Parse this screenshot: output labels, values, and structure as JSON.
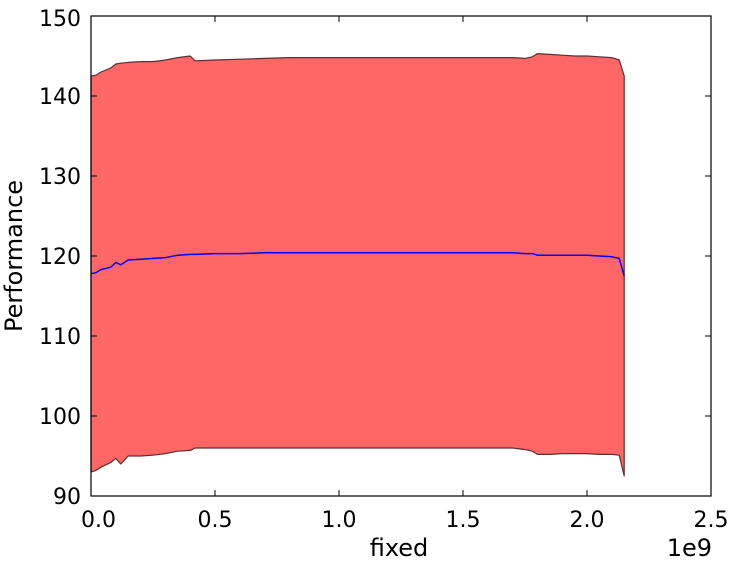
{
  "chart_data": {
    "type": "area",
    "title": "",
    "xlabel": "fixed",
    "ylabel": "Performance",
    "x_offset_label": "1e9",
    "xlim": [
      0,
      2.5
    ],
    "ylim": [
      90,
      150
    ],
    "x_ticks": [
      0.0,
      0.5,
      1.0,
      1.5,
      2.0,
      2.5
    ],
    "x_tick_labels": [
      "0.0",
      "0.5",
      "1.0",
      "1.5",
      "2.0",
      "2.5"
    ],
    "y_ticks": [
      90,
      100,
      110,
      120,
      130,
      140,
      150
    ],
    "y_tick_labels": [
      "90",
      "100",
      "110",
      "120",
      "130",
      "140",
      "150"
    ],
    "grid": false,
    "legend": "none",
    "colors": {
      "band_fill": "#ff6666",
      "band_edge": "#5a3030",
      "mean_line": "#0000ff"
    },
    "series": [
      {
        "x": [
          0.0,
          0.02,
          0.04,
          0.08,
          0.1,
          0.12,
          0.15,
          0.2,
          0.25,
          0.3,
          0.35,
          0.4,
          0.42,
          0.5,
          0.6,
          0.7,
          0.8,
          0.9,
          1.0,
          1.1,
          1.2,
          1.3,
          1.4,
          1.5,
          1.6,
          1.7,
          1.75,
          1.78,
          1.8,
          1.85,
          1.9,
          1.95,
          2.0,
          2.05,
          2.1,
          2.13,
          2.15
        ],
        "mean": [
          117.8,
          117.9,
          118.3,
          118.6,
          119.2,
          118.9,
          119.5,
          119.6,
          119.7,
          119.8,
          120.1,
          120.2,
          120.2,
          120.3,
          120.3,
          120.4,
          120.4,
          120.4,
          120.4,
          120.4,
          120.4,
          120.4,
          120.4,
          120.4,
          120.4,
          120.4,
          120.3,
          120.3,
          120.1,
          120.1,
          120.1,
          120.1,
          120.1,
          120.0,
          119.9,
          119.7,
          117.5
        ],
        "upper": [
          142.5,
          142.6,
          143.0,
          143.5,
          144.0,
          144.1,
          144.2,
          144.3,
          144.3,
          144.5,
          144.8,
          145.0,
          144.4,
          144.5,
          144.6,
          144.7,
          144.8,
          144.8,
          144.8,
          144.8,
          144.8,
          144.8,
          144.8,
          144.8,
          144.8,
          144.8,
          144.7,
          144.9,
          145.3,
          145.2,
          145.1,
          145.0,
          145.0,
          144.9,
          144.8,
          144.5,
          142.5
        ],
        "lower": [
          93.0,
          93.2,
          93.6,
          94.2,
          94.7,
          94.0,
          95.0,
          95.0,
          95.1,
          95.3,
          95.6,
          95.7,
          96.0,
          96.0,
          96.0,
          96.0,
          96.0,
          96.0,
          96.0,
          96.0,
          96.0,
          96.0,
          96.0,
          96.0,
          96.0,
          96.0,
          95.8,
          95.6,
          95.2,
          95.2,
          95.3,
          95.3,
          95.3,
          95.2,
          95.2,
          95.1,
          92.5
        ]
      }
    ]
  }
}
